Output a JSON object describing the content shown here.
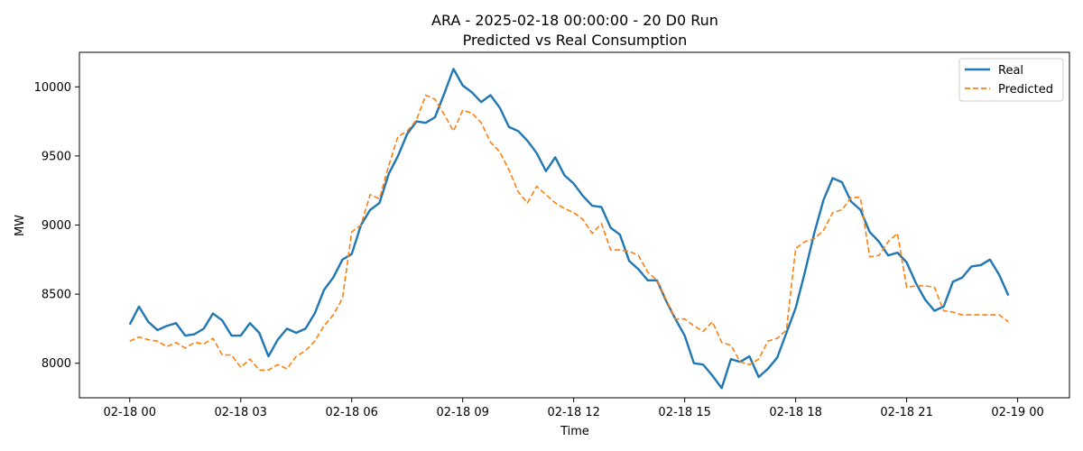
{
  "chart_data": {
    "type": "line",
    "title": "ARA - 2025-02-18 00:00:00 - 20 D0 Run",
    "subtitle": "Predicted vs Real Consumption",
    "xlabel": "Time",
    "ylabel": "MW",
    "x_unit": "hours since 2025-02-18 00:00 (15-minute steps)",
    "x_step_hours": 0.25,
    "xlim": [
      -1.36,
      25.4
    ],
    "ylim": [
      7750,
      10250
    ],
    "x_ticks": [
      {
        "hours": 0,
        "label": "02-18 00"
      },
      {
        "hours": 3,
        "label": "02-18 03"
      },
      {
        "hours": 6,
        "label": "02-18 06"
      },
      {
        "hours": 9,
        "label": "02-18 09"
      },
      {
        "hours": 12,
        "label": "02-18 12"
      },
      {
        "hours": 15,
        "label": "02-18 15"
      },
      {
        "hours": 18,
        "label": "02-18 18"
      },
      {
        "hours": 21,
        "label": "02-18 21"
      },
      {
        "hours": 24,
        "label": "02-19 00"
      }
    ],
    "y_ticks": [
      8000,
      8500,
      9000,
      9500,
      10000
    ],
    "grid": false,
    "legend_position": "top-right",
    "series": [
      {
        "name": "Real",
        "color": "#1f77b4",
        "style": "solid",
        "values": [
          8280,
          8410,
          8300,
          8240,
          8270,
          8290,
          8200,
          8210,
          8250,
          8360,
          8310,
          8200,
          8200,
          8290,
          8220,
          8050,
          8170,
          8250,
          8220,
          8250,
          8360,
          8530,
          8620,
          8750,
          8790,
          9000,
          9110,
          9160,
          9370,
          9500,
          9660,
          9750,
          9740,
          9780,
          9950,
          10130,
          10010,
          9960,
          9890,
          9940,
          9850,
          9710,
          9680,
          9610,
          9520,
          9390,
          9490,
          9360,
          9300,
          9210,
          9140,
          9130,
          8980,
          8930,
          8740,
          8680,
          8600,
          8600,
          8450,
          8320,
          8200,
          8000,
          7990,
          7910,
          7820,
          8030,
          8010,
          8050,
          7900,
          7960,
          8040,
          8220,
          8400,
          8660,
          8940,
          9180,
          9340,
          9310,
          9170,
          9110,
          8950,
          8880,
          8780,
          8800,
          8730,
          8580,
          8460,
          8380,
          8410,
          8590,
          8620,
          8700,
          8710,
          8750,
          8640,
          8490
        ]
      },
      {
        "name": "Predicted",
        "color": "#ff7f0e",
        "style": "dashed",
        "values": [
          8160,
          8190,
          8170,
          8160,
          8120,
          8150,
          8110,
          8150,
          8140,
          8180,
          8060,
          8060,
          7970,
          8030,
          7950,
          7950,
          7990,
          7960,
          8050,
          8090,
          8160,
          8270,
          8350,
          8470,
          8950,
          9000,
          9220,
          9190,
          9430,
          9640,
          9680,
          9760,
          9940,
          9910,
          9800,
          9680,
          9830,
          9810,
          9740,
          9600,
          9530,
          9400,
          9240,
          9160,
          9280,
          9220,
          9160,
          9120,
          9090,
          9040,
          8940,
          9010,
          8820,
          8820,
          8810,
          8780,
          8660,
          8600,
          8460,
          8320,
          8320,
          8270,
          8230,
          8300,
          8150,
          8130,
          8010,
          7990,
          8030,
          8160,
          8180,
          8240,
          8830,
          8880,
          8900,
          8960,
          9090,
          9110,
          9200,
          9200,
          8770,
          8780,
          8880,
          8940,
          8550,
          8560,
          8560,
          8550,
          8380,
          8370,
          8350,
          8350,
          8350,
          8350,
          8350,
          8300
        ]
      }
    ]
  }
}
